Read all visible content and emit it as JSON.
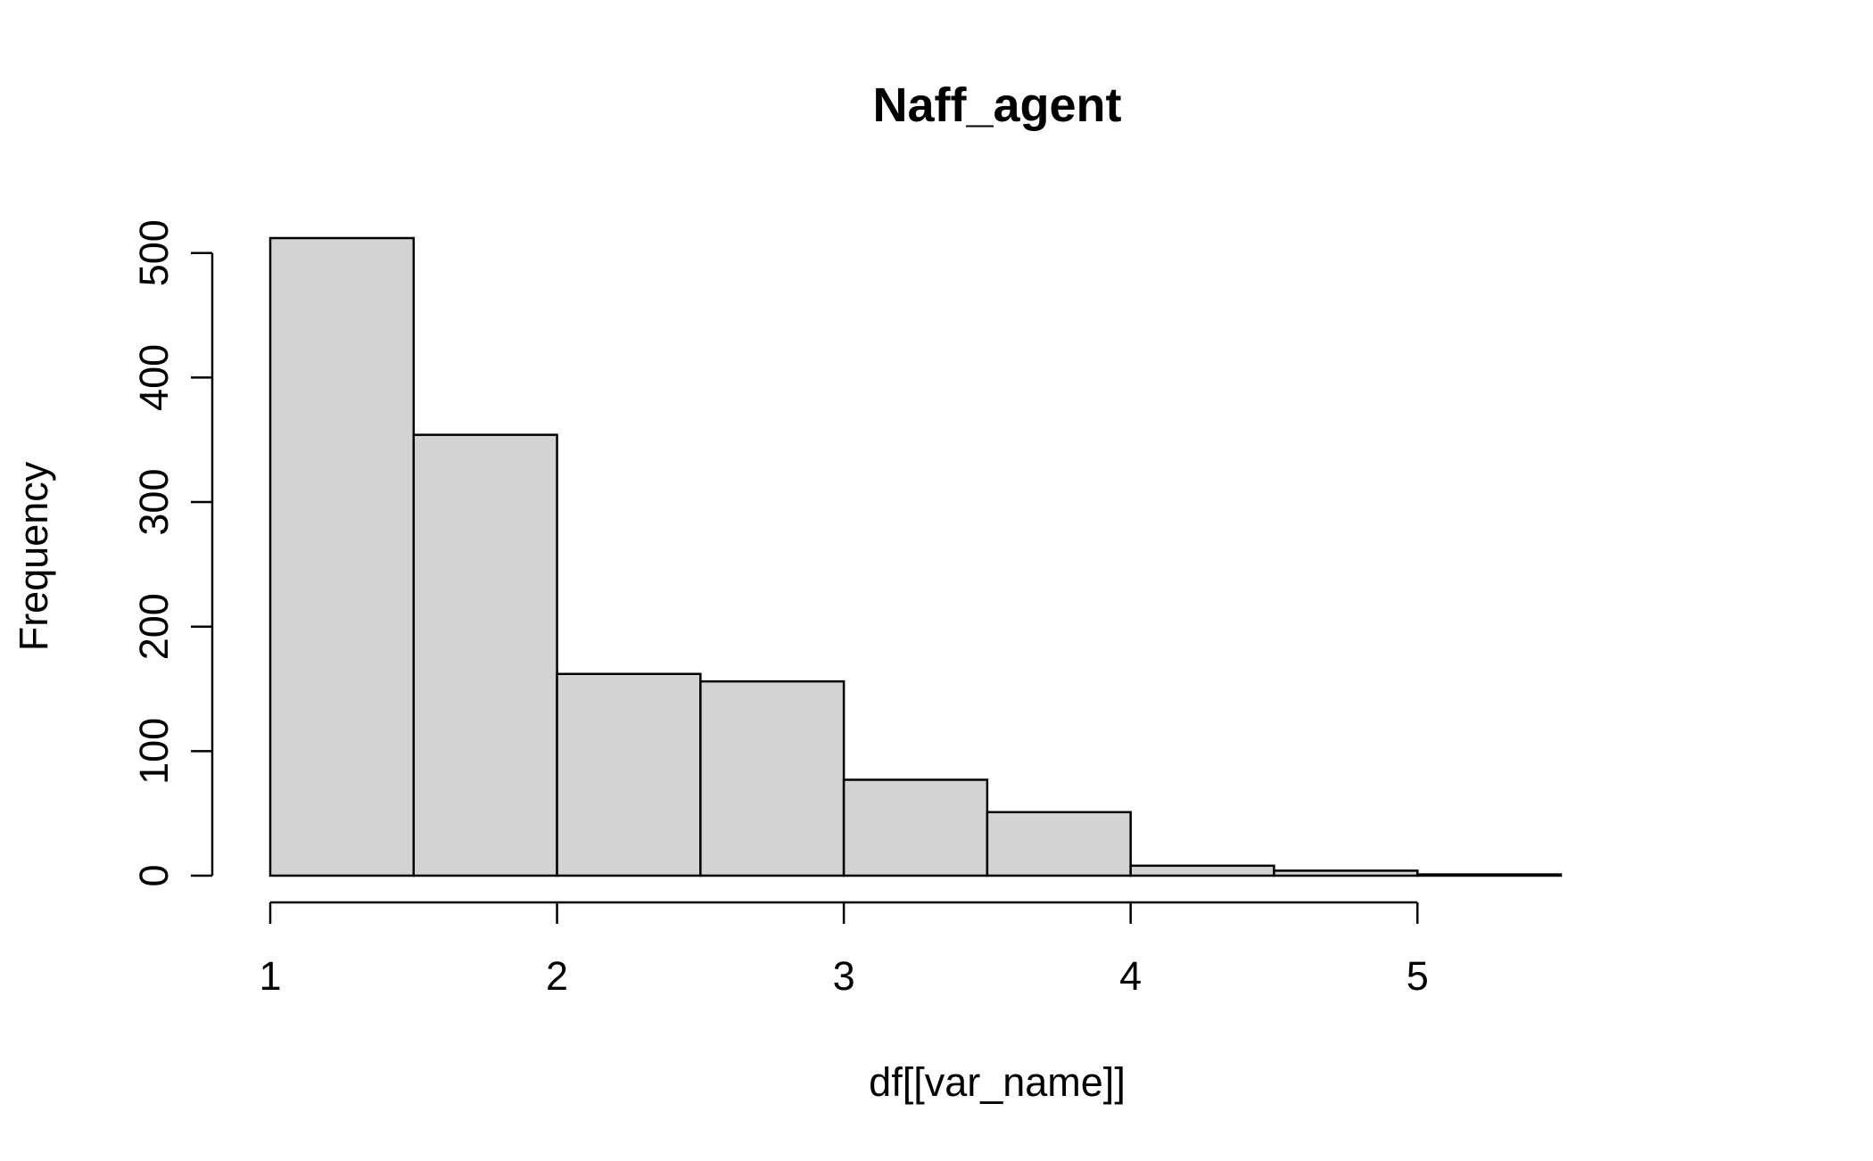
{
  "chart_data": {
    "type": "bar",
    "title": "Naff_agent",
    "xlabel": "df[[var_name]]",
    "ylabel": "Frequency",
    "bins": [
      {
        "start": 1.0,
        "end": 1.5,
        "count": 512
      },
      {
        "start": 1.5,
        "end": 2.0,
        "count": 354
      },
      {
        "start": 2.0,
        "end": 2.5,
        "count": 162
      },
      {
        "start": 2.5,
        "end": 3.0,
        "count": 156
      },
      {
        "start": 3.0,
        "end": 3.5,
        "count": 77
      },
      {
        "start": 3.5,
        "end": 4.0,
        "count": 51
      },
      {
        "start": 4.0,
        "end": 4.5,
        "count": 8
      },
      {
        "start": 4.5,
        "end": 5.0,
        "count": 4
      },
      {
        "start": 5.0,
        "end": 5.5,
        "count": 1
      }
    ],
    "xlim": [
      1,
      5.5
    ],
    "ylim": [
      0,
      512
    ],
    "x_ticks": [
      1,
      2,
      3,
      4,
      5
    ],
    "y_ticks": [
      0,
      100,
      200,
      300,
      400,
      500
    ],
    "bar_fill": "#d3d3d3",
    "bar_stroke": "#000000",
    "grid": false,
    "legend": "none"
  }
}
